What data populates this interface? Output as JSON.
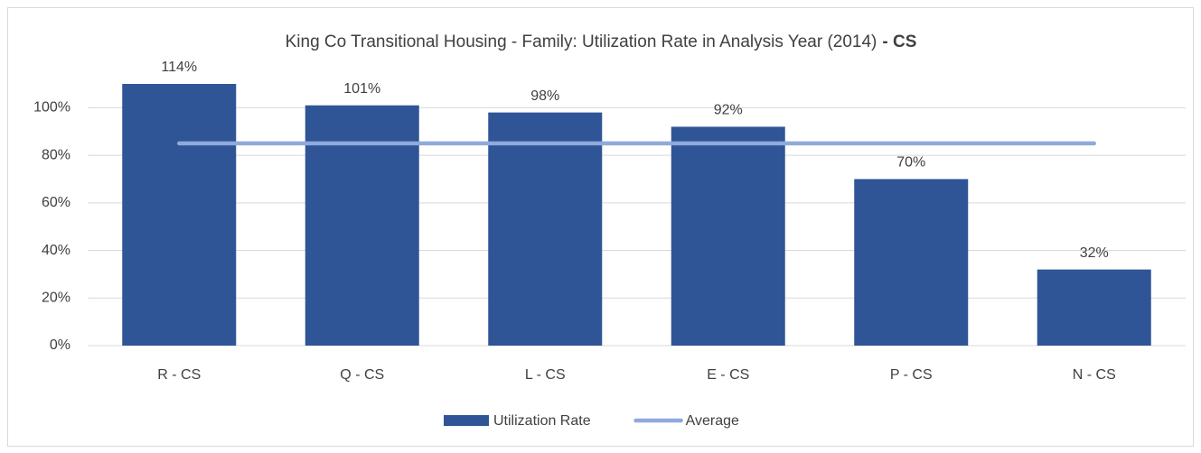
{
  "chart_data": {
    "type": "bar",
    "title": "King Co Transitional Housing - Family: Utilization Rate in Analysis Year (2014)",
    "title_bold": "- CS",
    "categories": [
      "R - CS",
      "Q - CS",
      "L - CS",
      "E - CS",
      "P - CS",
      "N - CS"
    ],
    "series": [
      {
        "name": "Utilization Rate",
        "type": "bar",
        "color": "#2f5597",
        "values": [
          114,
          101,
          98,
          92,
          70,
          32
        ],
        "value_labels": [
          "114%",
          "101%",
          "98%",
          "92%",
          "70%",
          "32%"
        ]
      },
      {
        "name": "Average",
        "type": "line",
        "color": "#8faadc",
        "values": [
          85,
          85,
          85,
          85,
          85,
          85
        ]
      }
    ],
    "ylim": [
      0,
      110
    ],
    "yticks": [
      {
        "value": 0,
        "label": "0%"
      },
      {
        "value": 20,
        "label": "20%"
      },
      {
        "value": 40,
        "label": "40%"
      },
      {
        "value": 60,
        "label": "60%"
      },
      {
        "value": 80,
        "label": "80%"
      },
      {
        "value": 100,
        "label": "100%"
      }
    ],
    "grid": true,
    "legend": "bottom"
  }
}
